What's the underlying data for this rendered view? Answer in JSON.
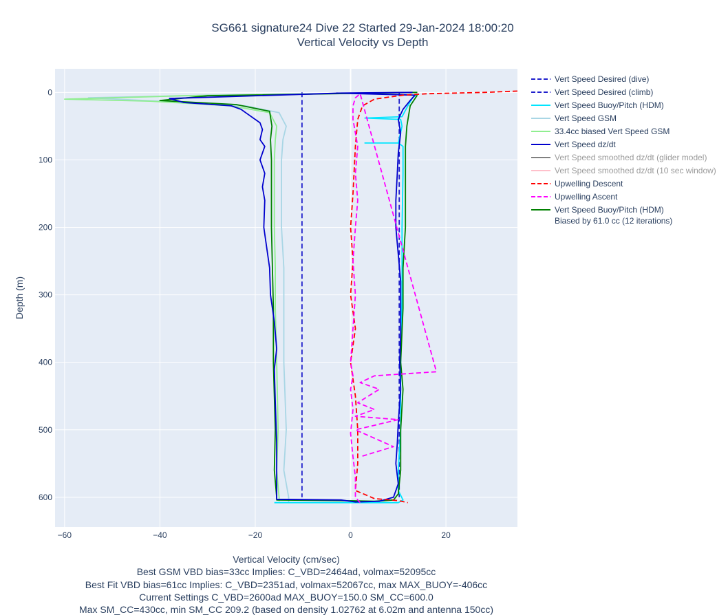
{
  "title": {
    "line1": "SG661 signature24 Dive 22 Started 29-Jan-2024 18:00:20",
    "line2": "Vertical Velocity vs Depth"
  },
  "notes": [
    "Vertical Velocity (cm/sec)",
    "Best GSM VBD bias=33cc Implies: C_VBD=2464ad, volmax=52095cc",
    "Best Fit VBD bias=61cc Implies: C_VBD=2351ad, volmax=52067cc, max MAX_BUOY=-406cc",
    "Current Settings C_VBD=2600ad MAX_BUOY=150.0 SM_CC=600.0",
    "Max SM_CC=430cc, min SM_CC 209.2 (based on density 1.02762 at 6.02m and antenna 150cc)"
  ],
  "legend": [
    {
      "label": "Vert Speed Desired (dive)",
      "color": "#1f1fcc",
      "dash": "dash",
      "dim": false
    },
    {
      "label": "Vert Speed Desired (climb)",
      "color": "#1f1fcc",
      "dash": "dash",
      "dim": false
    },
    {
      "label": "Vert Speed Buoy/Pitch (HDM)",
      "color": "#00e5ff",
      "dash": "solid",
      "dim": false
    },
    {
      "label": "Vert Speed GSM",
      "color": "#a9d6e5",
      "dash": "solid",
      "dim": false
    },
    {
      "label": "33.4cc biased Vert Speed GSM",
      "color": "#90ee90",
      "dash": "solid",
      "dim": false
    },
    {
      "label": "Vert Speed dz/dt",
      "color": "#0000cd",
      "dash": "solid",
      "dim": false
    },
    {
      "label": "Vert Speed smoothed dz/dt (glider model)",
      "color": "#808080",
      "dash": "solid",
      "dim": true
    },
    {
      "label": "Vert Speed smoothed dz/dt (10 sec window)",
      "color": "#ffc0cb",
      "dash": "solid",
      "dim": true
    },
    {
      "label": "Upwelling Descent",
      "color": "#ff0000",
      "dash": "dash",
      "dim": false
    },
    {
      "label": "Upwelling Ascent",
      "color": "#ff00ff",
      "dash": "dash",
      "dim": false
    },
    {
      "label": "Vert Speed Buoy/Pitch (HDM)",
      "label2": "Biased by 61.0 cc (12 iterations)",
      "color": "#008000",
      "dash": "solid",
      "dim": false
    }
  ],
  "chart_data": {
    "type": "line",
    "xlabel": "Vertical Velocity (cm/sec)",
    "ylabel": "Depth (m)",
    "xlim": [
      -62,
      35
    ],
    "ylim": [
      644,
      -35
    ],
    "xticks": [
      -60,
      -40,
      -20,
      0,
      20
    ],
    "yticks": [
      0,
      100,
      200,
      300,
      400,
      500,
      600
    ],
    "grid": true,
    "legend_position": "right",
    "series": [
      {
        "name": "Vert Speed Desired (dive)",
        "color": "#1f1fcc",
        "dash": true,
        "width": 1.8,
        "points": [
          [
            -10.2,
            0
          ],
          [
            -10.2,
            600
          ]
        ]
      },
      {
        "name": "Vert Speed Desired (climb)",
        "color": "#1f1fcc",
        "dash": true,
        "width": 1.8,
        "points": [
          [
            10.2,
            600
          ],
          [
            10.2,
            0
          ]
        ]
      },
      {
        "name": "Vert Speed GSM",
        "color": "#a9d6e5",
        "dash": false,
        "width": 1.8,
        "points": [
          [
            13,
            0
          ],
          [
            -30,
            4
          ],
          [
            -55,
            8
          ],
          [
            -40,
            13
          ],
          [
            -22,
            20
          ],
          [
            -15,
            30
          ],
          [
            -13.5,
            50
          ],
          [
            -14.2,
            70
          ],
          [
            -14.5,
            100
          ],
          [
            -14.5,
            150
          ],
          [
            -14.5,
            200
          ],
          [
            -14,
            260
          ],
          [
            -14,
            320
          ],
          [
            -14,
            400
          ],
          [
            -13.5,
            500
          ],
          [
            -14,
            560
          ],
          [
            -13,
            600
          ],
          [
            -13,
            608
          ]
        ]
      },
      {
        "name": "33.4cc biased Vert Speed GSM",
        "color": "#90ee90",
        "dash": false,
        "width": 1.8,
        "points": [
          [
            13,
            0
          ],
          [
            -35,
            5
          ],
          [
            -60,
            10
          ],
          [
            -42,
            13
          ],
          [
            -25,
            20
          ],
          [
            -17,
            30
          ],
          [
            -15.5,
            50
          ],
          [
            -15.8,
            70
          ],
          [
            -16,
            100
          ],
          [
            -16,
            160
          ],
          [
            -16,
            200
          ],
          [
            -15.8,
            260
          ],
          [
            -15.8,
            320
          ],
          [
            -15.5,
            400
          ],
          [
            -15.2,
            500
          ],
          [
            -15.5,
            560
          ],
          [
            -15,
            600
          ],
          [
            -15,
            606
          ]
        ]
      },
      {
        "name": "Vert Speed Buoy/Pitch (HDM)",
        "color": "#00e5ff",
        "dash": false,
        "width": 1.8,
        "points": [
          [
            -16,
            608
          ],
          [
            -5,
            608
          ],
          [
            8,
            608
          ],
          [
            10,
            608
          ],
          [
            11,
            604
          ],
          [
            10,
            590
          ],
          [
            10,
            560
          ],
          [
            10.5,
            500
          ],
          [
            10.5,
            400
          ],
          [
            10.8,
            300
          ],
          [
            10.8,
            200
          ],
          [
            11,
            120
          ],
          [
            11,
            80
          ],
          [
            10,
            75
          ],
          [
            3,
            75
          ],
          [
            10,
            75
          ],
          [
            10.8,
            50
          ],
          [
            10.5,
            40
          ],
          [
            3,
            38
          ],
          [
            10.8,
            36
          ],
          [
            12,
            20
          ],
          [
            13,
            8
          ],
          [
            14,
            2
          ]
        ]
      },
      {
        "name": "Vert Speed Buoy/Pitch (HDM) Biased by 61.0 cc (12 iterations)",
        "color": "#008000",
        "dash": false,
        "width": 1.8,
        "points": [
          [
            14,
            0
          ],
          [
            -30,
            5
          ],
          [
            -40,
            12
          ],
          [
            -24,
            18
          ],
          [
            -17,
            28
          ],
          [
            -16.5,
            50
          ],
          [
            -16.8,
            70
          ],
          [
            -16.6,
            100
          ],
          [
            -16.6,
            150
          ],
          [
            -16.6,
            200
          ],
          [
            -16.4,
            260
          ],
          [
            -16.2,
            320
          ],
          [
            -16.2,
            400
          ],
          [
            -15.8,
            500
          ],
          [
            -16,
            560
          ],
          [
            -15.5,
            600
          ],
          [
            -15.5,
            604
          ],
          [
            -2,
            605
          ],
          [
            5,
            606
          ],
          [
            9,
            604
          ],
          [
            10,
            595
          ],
          [
            10.5,
            560
          ],
          [
            10.5,
            500
          ],
          [
            11,
            440
          ],
          [
            10.5,
            400
          ],
          [
            11,
            320
          ],
          [
            11,
            260
          ],
          [
            11.5,
            200
          ],
          [
            11.5,
            120
          ],
          [
            11.5,
            80
          ],
          [
            11.8,
            50
          ],
          [
            12.5,
            20
          ],
          [
            14,
            4
          ]
        ]
      },
      {
        "name": "Vert Speed dz/dt",
        "color": "#0000cd",
        "dash": false,
        "width": 1.8,
        "points": [
          [
            13,
            0
          ],
          [
            -2,
            1
          ],
          [
            -38,
            9
          ],
          [
            -35,
            15
          ],
          [
            -25,
            20
          ],
          [
            -23,
            25
          ],
          [
            -22,
            30
          ],
          [
            -19,
            45
          ],
          [
            -18.5,
            55
          ],
          [
            -19,
            70
          ],
          [
            -18,
            80
          ],
          [
            -19,
            100
          ],
          [
            -18,
            120
          ],
          [
            -18.5,
            140
          ],
          [
            -18,
            160
          ],
          [
            -18.2,
            200
          ],
          [
            -17,
            260
          ],
          [
            -16.8,
            300
          ],
          [
            -16,
            340
          ],
          [
            -15.5,
            380
          ],
          [
            -16,
            410
          ],
          [
            -15.8,
            460
          ],
          [
            -15.5,
            520
          ],
          [
            -15.5,
            560
          ],
          [
            -15.5,
            600
          ],
          [
            -15.5,
            603
          ],
          [
            -2,
            604
          ],
          [
            1,
            607
          ],
          [
            6,
            606
          ],
          [
            9,
            600
          ],
          [
            10,
            580
          ],
          [
            9.5,
            550
          ],
          [
            9.8,
            520
          ],
          [
            10,
            490
          ],
          [
            10.5,
            440
          ],
          [
            10.3,
            400
          ],
          [
            10.5,
            360
          ],
          [
            10.5,
            320
          ],
          [
            10.5,
            280
          ],
          [
            10,
            240
          ],
          [
            9.5,
            200
          ],
          [
            9.5,
            160
          ],
          [
            9.8,
            120
          ],
          [
            10,
            90
          ],
          [
            10.5,
            60
          ],
          [
            10,
            40
          ],
          [
            11,
            25
          ],
          [
            12.5,
            12
          ],
          [
            13.5,
            4
          ],
          [
            -3,
            1
          ]
        ]
      },
      {
        "name": "Upwelling Descent",
        "color": "#ff0000",
        "dash": true,
        "width": 1.8,
        "points": [
          [
            35,
            -2
          ],
          [
            28,
            0
          ],
          [
            22,
            1
          ],
          [
            16,
            2
          ],
          [
            11,
            4
          ],
          [
            5,
            10
          ],
          [
            2.5,
            20
          ],
          [
            1.5,
            40
          ],
          [
            1,
            80
          ],
          [
            0.5,
            150
          ],
          [
            0,
            200
          ],
          [
            0.5,
            250
          ],
          [
            0,
            300
          ],
          [
            1,
            350
          ],
          [
            0,
            400
          ],
          [
            1,
            450
          ],
          [
            1.5,
            500
          ],
          [
            1.5,
            550
          ],
          [
            1,
            590
          ],
          [
            5,
            602
          ],
          [
            10,
            605
          ],
          [
            12,
            608
          ]
        ]
      },
      {
        "name": "Upwelling Ascent",
        "color": "#ff00ff",
        "dash": true,
        "width": 1.8,
        "points": [
          [
            2,
            608
          ],
          [
            1,
            600
          ],
          [
            1,
            570
          ],
          [
            0.5,
            540
          ],
          [
            0,
            505
          ],
          [
            0.5,
            470
          ],
          [
            0,
            440
          ],
          [
            0.5,
            420
          ],
          [
            0,
            400
          ],
          [
            0.5,
            350
          ],
          [
            1,
            300
          ],
          [
            0.5,
            250
          ],
          [
            1,
            200
          ],
          [
            1.5,
            160
          ],
          [
            1,
            120
          ],
          [
            1.5,
            80
          ],
          [
            0.5,
            40
          ],
          [
            0.5,
            20
          ],
          [
            1,
            8
          ],
          [
            2,
            2
          ],
          [
            18,
            414
          ],
          [
            5,
            420
          ],
          [
            2,
            430
          ],
          [
            6,
            440
          ],
          [
            1.5,
            460
          ],
          [
            5,
            470
          ],
          [
            1,
            480
          ],
          [
            10,
            485
          ],
          [
            1,
            500
          ],
          [
            9,
            525
          ],
          [
            2,
            540
          ]
        ]
      }
    ]
  }
}
